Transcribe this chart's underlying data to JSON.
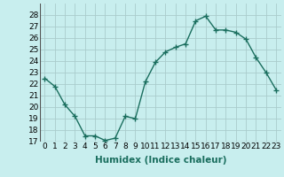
{
  "x": [
    0,
    1,
    2,
    3,
    4,
    5,
    6,
    7,
    8,
    9,
    10,
    11,
    12,
    13,
    14,
    15,
    16,
    17,
    18,
    19,
    20,
    21,
    22,
    23
  ],
  "y": [
    22.5,
    21.8,
    20.2,
    19.2,
    17.5,
    17.5,
    17.1,
    17.3,
    19.2,
    19.0,
    22.2,
    23.9,
    24.8,
    25.2,
    25.5,
    27.5,
    27.9,
    26.7,
    26.7,
    26.5,
    25.9,
    24.3,
    23.0,
    21.5
  ],
  "line_color": "#1a6e5e",
  "marker": "+",
  "marker_size": 4,
  "marker_lw": 1.0,
  "bg_color": "#c8eeee",
  "grid_color": "#aacccc",
  "xlabel": "Humidex (Indice chaleur)",
  "xlim": [
    -0.5,
    23.5
  ],
  "ylim": [
    17,
    29
  ],
  "yticks": [
    17,
    18,
    19,
    20,
    21,
    22,
    23,
    24,
    25,
    26,
    27,
    28
  ],
  "xticks": [
    0,
    1,
    2,
    3,
    4,
    5,
    6,
    7,
    8,
    9,
    10,
    11,
    12,
    13,
    14,
    15,
    16,
    17,
    18,
    19,
    20,
    21,
    22,
    23
  ],
  "xlabel_fontsize": 7.5,
  "tick_fontsize": 6.5,
  "line_width": 1.0
}
